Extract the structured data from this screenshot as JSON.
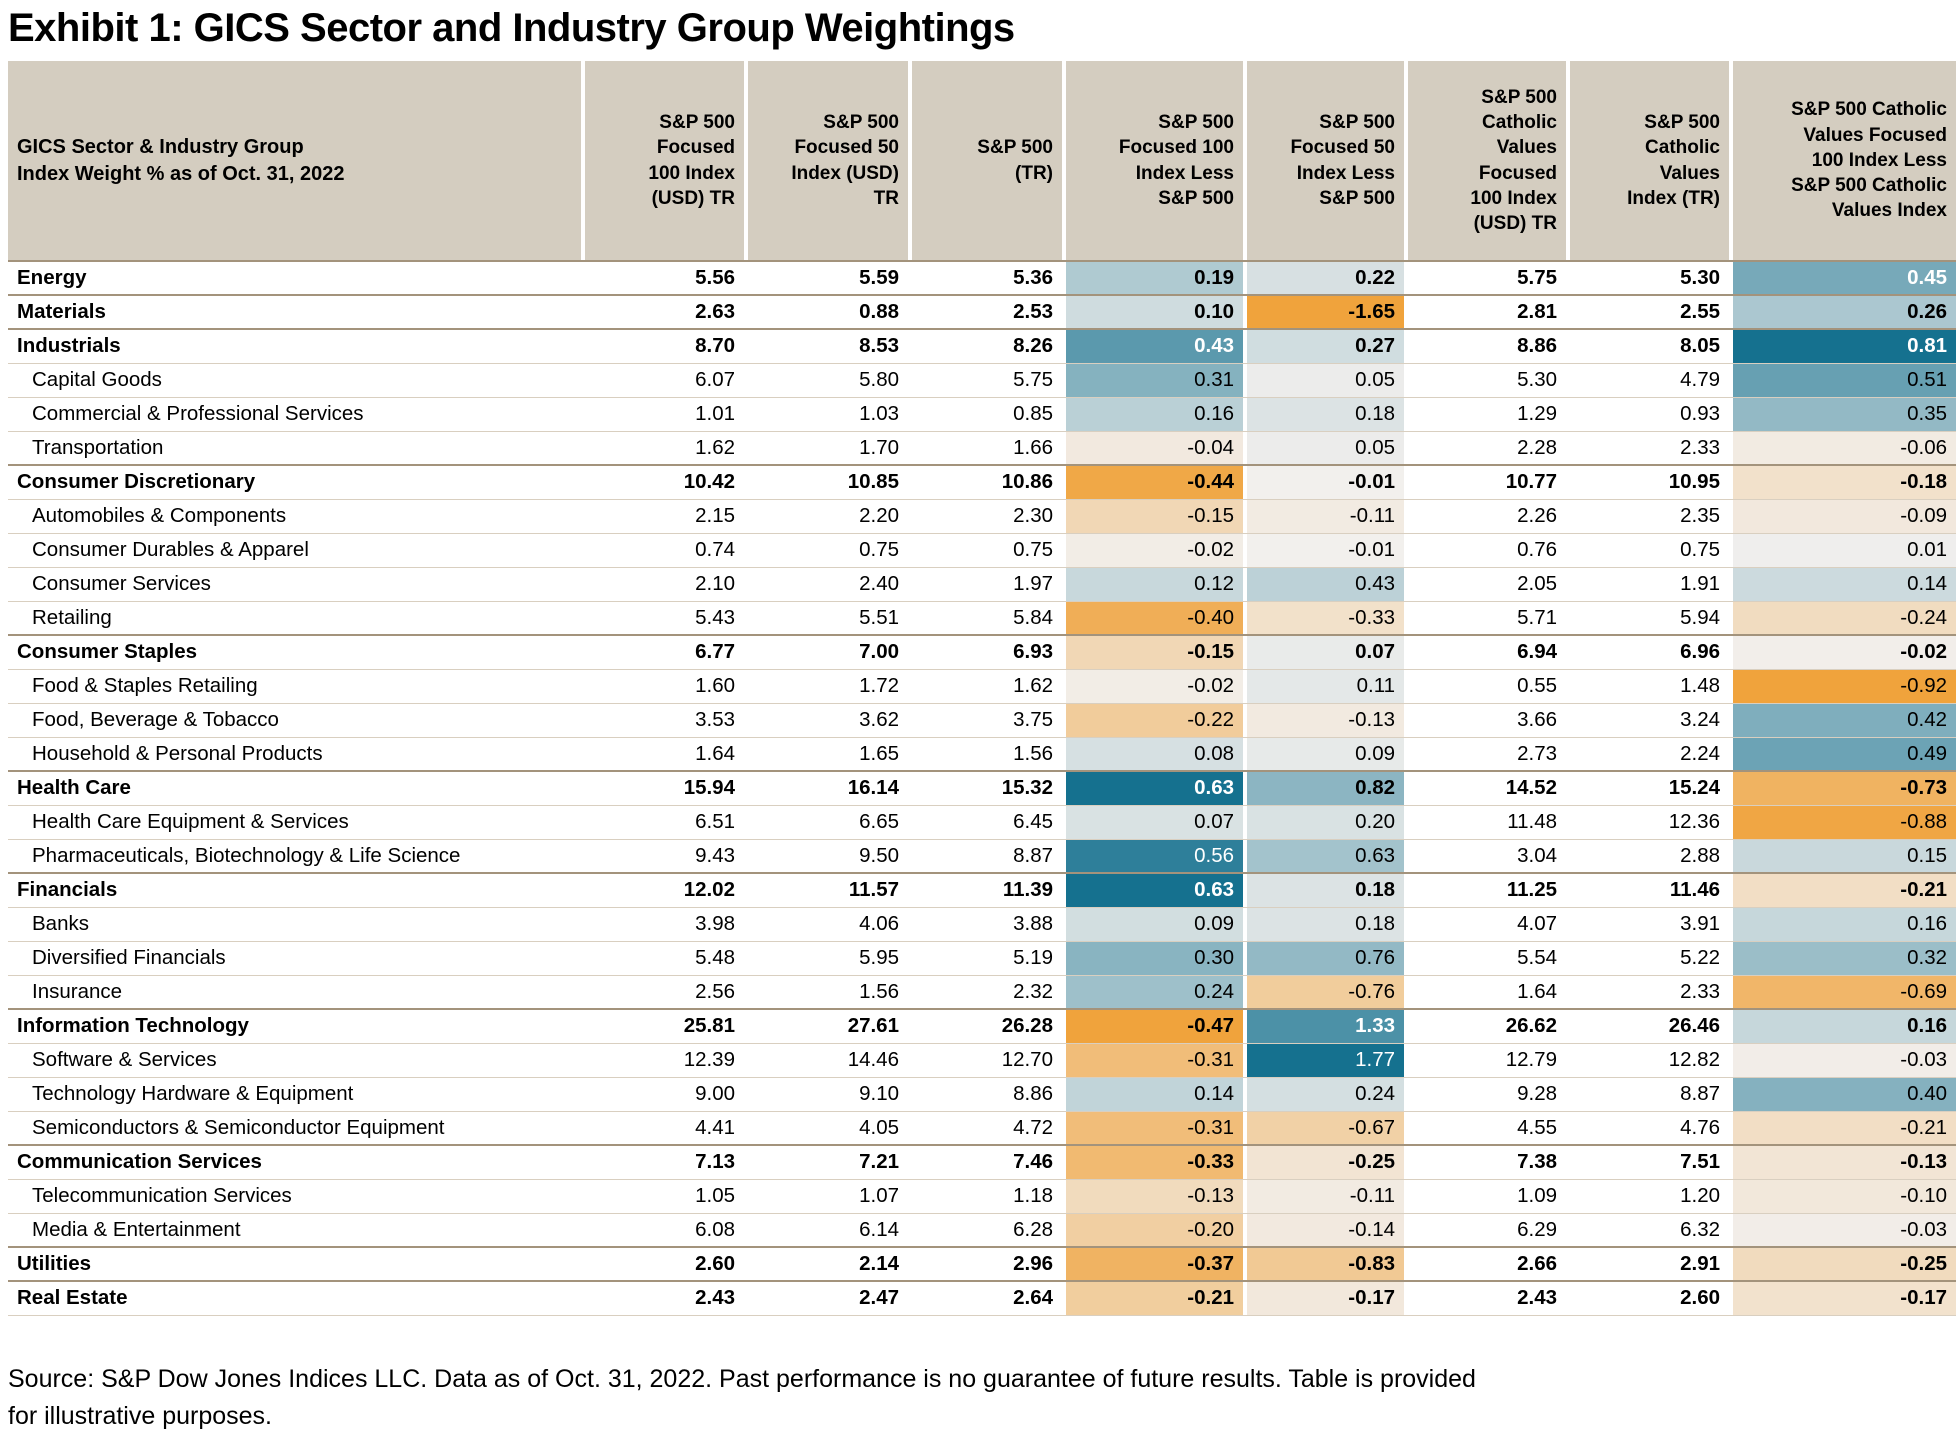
{
  "chart_data": {
    "type": "table",
    "title": "Exhibit 1: GICS Sector and Industry Group Weightings",
    "source_note": "Source: S&P Dow Jones Indices LLC. Data as of Oct. 31, 2022. Past performance is no guarantee of future results. Table is provided for illustrative purposes.",
    "colors": {
      "heat_max": "#15718f",
      "heat_mid": "#f2f0ee",
      "heat_min": "#f0a33c",
      "header_bg": "#d4cdc0",
      "sector_rule": "#a3937c",
      "group_rule": "#d9cfc0"
    },
    "heatmap_columns": [
      "f100_less",
      "f50_less",
      "cv_less"
    ],
    "white_text_cells": [
      [
        0,
        "cv_less"
      ],
      [
        2,
        "f100_less"
      ],
      [
        2,
        "cv_less"
      ],
      [
        15,
        "f100_less"
      ],
      [
        17,
        "f100_less"
      ],
      [
        18,
        "f100_less"
      ],
      [
        22,
        "f50_less"
      ],
      [
        23,
        "f50_less"
      ]
    ],
    "columns": [
      {
        "key": "name",
        "label": "GICS Sector & Industry Group\nIndex Weight % as of Oct. 31, 2022",
        "align": "left"
      },
      {
        "key": "f100",
        "label": "S&P 500\nFocused\n100 Index\n(USD) TR",
        "align": "right"
      },
      {
        "key": "f50",
        "label": "S&P 500\nFocused 50\nIndex (USD)\nTR",
        "align": "right"
      },
      {
        "key": "sp500",
        "label": "S&P 500\n(TR)",
        "align": "right"
      },
      {
        "key": "f100_less",
        "label": "S&P 500\nFocused 100\nIndex Less\nS&P 500",
        "align": "right",
        "heatmap": true
      },
      {
        "key": "f50_less",
        "label": "S&P 500\nFocused 50\nIndex Less\nS&P 500",
        "align": "right",
        "heatmap": true
      },
      {
        "key": "cvf100",
        "label": "S&P 500\nCatholic\nValues\nFocused\n100 Index\n(USD) TR",
        "align": "right"
      },
      {
        "key": "cv",
        "label": "S&P 500\nCatholic\nValues\nIndex (TR)",
        "align": "right"
      },
      {
        "key": "cv_less",
        "label": "S&P 500 Catholic\nValues Focused\n100 Index Less\nS&P 500 Catholic\nValues Index",
        "align": "right",
        "heatmap": true
      }
    ],
    "rows": [
      {
        "name": "Energy",
        "level": "sector",
        "f100": "5.56",
        "f50": "5.59",
        "sp500": "5.36",
        "f100_less": "0.19",
        "f50_less": "0.22",
        "cvf100": "5.75",
        "cv": "5.30",
        "cv_less": "0.45"
      },
      {
        "name": "Materials",
        "level": "sector",
        "f100": "2.63",
        "f50": "0.88",
        "sp500": "2.53",
        "f100_less": "0.10",
        "f50_less": "-1.65",
        "cvf100": "2.81",
        "cv": "2.55",
        "cv_less": "0.26"
      },
      {
        "name": "Industrials",
        "level": "sector",
        "f100": "8.70",
        "f50": "8.53",
        "sp500": "8.26",
        "f100_less": "0.43",
        "f50_less": "0.27",
        "cvf100": "8.86",
        "cv": "8.05",
        "cv_less": "0.81"
      },
      {
        "name": "Capital Goods",
        "level": "group",
        "f100": "6.07",
        "f50": "5.80",
        "sp500": "5.75",
        "f100_less": "0.31",
        "f50_less": "0.05",
        "cvf100": "5.30",
        "cv": "4.79",
        "cv_less": "0.51"
      },
      {
        "name": "Commercial & Professional Services",
        "level": "group",
        "f100": "1.01",
        "f50": "1.03",
        "sp500": "0.85",
        "f100_less": "0.16",
        "f50_less": "0.18",
        "cvf100": "1.29",
        "cv": "0.93",
        "cv_less": "0.35"
      },
      {
        "name": "Transportation",
        "level": "group",
        "f100": "1.62",
        "f50": "1.70",
        "sp500": "1.66",
        "f100_less": "-0.04",
        "f50_less": "0.05",
        "cvf100": "2.28",
        "cv": "2.33",
        "cv_less": "-0.06"
      },
      {
        "name": "Consumer Discretionary",
        "level": "sector",
        "f100": "10.42",
        "f50": "10.85",
        "sp500": "10.86",
        "f100_less": "-0.44",
        "f50_less": "-0.01",
        "cvf100": "10.77",
        "cv": "10.95",
        "cv_less": "-0.18"
      },
      {
        "name": "Automobiles & Components",
        "level": "group",
        "f100": "2.15",
        "f50": "2.20",
        "sp500": "2.30",
        "f100_less": "-0.15",
        "f50_less": "-0.11",
        "cvf100": "2.26",
        "cv": "2.35",
        "cv_less": "-0.09"
      },
      {
        "name": "Consumer Durables & Apparel",
        "level": "group",
        "f100": "0.74",
        "f50": "0.75",
        "sp500": "0.75",
        "f100_less": "-0.02",
        "f50_less": "-0.01",
        "cvf100": "0.76",
        "cv": "0.75",
        "cv_less": "0.01"
      },
      {
        "name": "Consumer Services",
        "level": "group",
        "f100": "2.10",
        "f50": "2.40",
        "sp500": "1.97",
        "f100_less": "0.12",
        "f50_less": "0.43",
        "cvf100": "2.05",
        "cv": "1.91",
        "cv_less": "0.14"
      },
      {
        "name": "Retailing",
        "level": "group",
        "f100": "5.43",
        "f50": "5.51",
        "sp500": "5.84",
        "f100_less": "-0.40",
        "f50_less": "-0.33",
        "cvf100": "5.71",
        "cv": "5.94",
        "cv_less": "-0.24"
      },
      {
        "name": "Consumer Staples",
        "level": "sector",
        "f100": "6.77",
        "f50": "7.00",
        "sp500": "6.93",
        "f100_less": "-0.15",
        "f50_less": "0.07",
        "cvf100": "6.94",
        "cv": "6.96",
        "cv_less": "-0.02"
      },
      {
        "name": "Food & Staples Retailing",
        "level": "group",
        "f100": "1.60",
        "f50": "1.72",
        "sp500": "1.62",
        "f100_less": "-0.02",
        "f50_less": "0.11",
        "cvf100": "0.55",
        "cv": "1.48",
        "cv_less": "-0.92"
      },
      {
        "name": "Food, Beverage & Tobacco",
        "level": "group",
        "f100": "3.53",
        "f50": "3.62",
        "sp500": "3.75",
        "f100_less": "-0.22",
        "f50_less": "-0.13",
        "cvf100": "3.66",
        "cv": "3.24",
        "cv_less": "0.42"
      },
      {
        "name": "Household & Personal Products",
        "level": "group",
        "f100": "1.64",
        "f50": "1.65",
        "sp500": "1.56",
        "f100_less": "0.08",
        "f50_less": "0.09",
        "cvf100": "2.73",
        "cv": "2.24",
        "cv_less": "0.49"
      },
      {
        "name": "Health Care",
        "level": "sector",
        "f100": "15.94",
        "f50": "16.14",
        "sp500": "15.32",
        "f100_less": "0.63",
        "f50_less": "0.82",
        "cvf100": "14.52",
        "cv": "15.24",
        "cv_less": "-0.73"
      },
      {
        "name": "Health Care Equipment & Services",
        "level": "group",
        "f100": "6.51",
        "f50": "6.65",
        "sp500": "6.45",
        "f100_less": "0.07",
        "f50_less": "0.20",
        "cvf100": "11.48",
        "cv": "12.36",
        "cv_less": "-0.88"
      },
      {
        "name": "Pharmaceuticals, Biotechnology & Life Science",
        "level": "group",
        "f100": "9.43",
        "f50": "9.50",
        "sp500": "8.87",
        "f100_less": "0.56",
        "f50_less": "0.63",
        "cvf100": "3.04",
        "cv": "2.88",
        "cv_less": "0.15"
      },
      {
        "name": "Financials",
        "level": "sector",
        "f100": "12.02",
        "f50": "11.57",
        "sp500": "11.39",
        "f100_less": "0.63",
        "f50_less": "0.18",
        "cvf100": "11.25",
        "cv": "11.46",
        "cv_less": "-0.21"
      },
      {
        "name": "Banks",
        "level": "group",
        "f100": "3.98",
        "f50": "4.06",
        "sp500": "3.88",
        "f100_less": "0.09",
        "f50_less": "0.18",
        "cvf100": "4.07",
        "cv": "3.91",
        "cv_less": "0.16"
      },
      {
        "name": "Diversified Financials",
        "level": "group",
        "f100": "5.48",
        "f50": "5.95",
        "sp500": "5.19",
        "f100_less": "0.30",
        "f50_less": "0.76",
        "cvf100": "5.54",
        "cv": "5.22",
        "cv_less": "0.32"
      },
      {
        "name": "Insurance",
        "level": "group",
        "f100": "2.56",
        "f50": "1.56",
        "sp500": "2.32",
        "f100_less": "0.24",
        "f50_less": "-0.76",
        "cvf100": "1.64",
        "cv": "2.33",
        "cv_less": "-0.69"
      },
      {
        "name": "Information Technology",
        "level": "sector",
        "f100": "25.81",
        "f50": "27.61",
        "sp500": "26.28",
        "f100_less": "-0.47",
        "f50_less": "1.33",
        "cvf100": "26.62",
        "cv": "26.46",
        "cv_less": "0.16"
      },
      {
        "name": "Software & Services",
        "level": "group",
        "f100": "12.39",
        "f50": "14.46",
        "sp500": "12.70",
        "f100_less": "-0.31",
        "f50_less": "1.77",
        "cvf100": "12.79",
        "cv": "12.82",
        "cv_less": "-0.03"
      },
      {
        "name": "Technology Hardware & Equipment",
        "level": "group",
        "f100": "9.00",
        "f50": "9.10",
        "sp500": "8.86",
        "f100_less": "0.14",
        "f50_less": "0.24",
        "cvf100": "9.28",
        "cv": "8.87",
        "cv_less": "0.40"
      },
      {
        "name": "Semiconductors & Semiconductor Equipment",
        "level": "group",
        "f100": "4.41",
        "f50": "4.05",
        "sp500": "4.72",
        "f100_less": "-0.31",
        "f50_less": "-0.67",
        "cvf100": "4.55",
        "cv": "4.76",
        "cv_less": "-0.21"
      },
      {
        "name": "Communication Services",
        "level": "sector",
        "f100": "7.13",
        "f50": "7.21",
        "sp500": "7.46",
        "f100_less": "-0.33",
        "f50_less": "-0.25",
        "cvf100": "7.38",
        "cv": "7.51",
        "cv_less": "-0.13"
      },
      {
        "name": "Telecommunication Services",
        "level": "group",
        "f100": "1.05",
        "f50": "1.07",
        "sp500": "1.18",
        "f100_less": "-0.13",
        "f50_less": "-0.11",
        "cvf100": "1.09",
        "cv": "1.20",
        "cv_less": "-0.10"
      },
      {
        "name": "Media & Entertainment",
        "level": "group",
        "f100": "6.08",
        "f50": "6.14",
        "sp500": "6.28",
        "f100_less": "-0.20",
        "f50_less": "-0.14",
        "cvf100": "6.29",
        "cv": "6.32",
        "cv_less": "-0.03"
      },
      {
        "name": "Utilities",
        "level": "sector",
        "f100": "2.60",
        "f50": "2.14",
        "sp500": "2.96",
        "f100_less": "-0.37",
        "f50_less": "-0.83",
        "cvf100": "2.66",
        "cv": "2.91",
        "cv_less": "-0.25"
      },
      {
        "name": "Real Estate",
        "level": "sector",
        "f100": "2.43",
        "f50": "2.47",
        "sp500": "2.64",
        "f100_less": "-0.21",
        "f50_less": "-0.17",
        "cvf100": "2.43",
        "cv": "2.60",
        "cv_less": "-0.17"
      }
    ]
  }
}
